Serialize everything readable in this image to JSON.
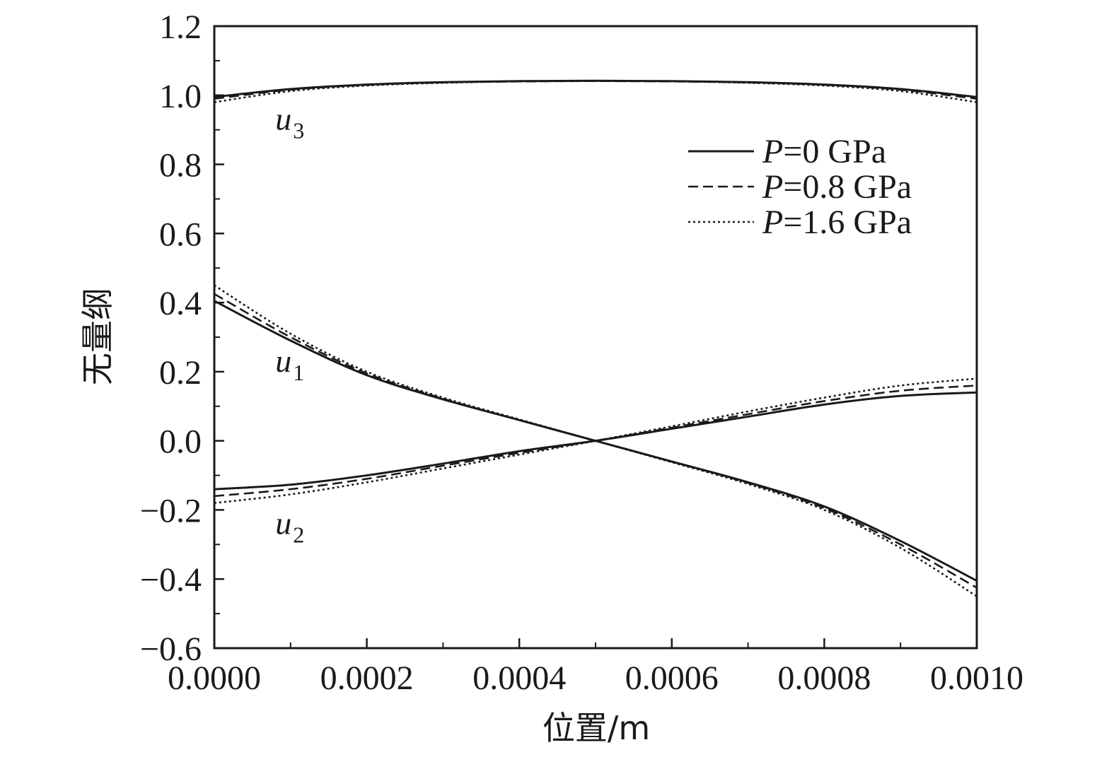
{
  "chart_data": {
    "type": "line",
    "xlabel": "位置/m",
    "ylabel": "无量纲",
    "xlim": [
      0,
      0.001
    ],
    "ylim": [
      -0.6,
      1.2
    ],
    "x_ticks": [
      "0.0000",
      "0.0002",
      "0.0004",
      "0.0006",
      "0.0008",
      "0.0010"
    ],
    "y_ticks": [
      "−0.6",
      "−0.4",
      "−0.2",
      "0.0",
      "0.2",
      "0.4",
      "0.6",
      "0.8",
      "1.0",
      "1.2"
    ],
    "grid": false,
    "legend_position": "top-right",
    "legend": [
      {
        "label_italic": "P",
        "label_rest": "=0 GPa",
        "style": "solid"
      },
      {
        "label_italic": "P",
        "label_rest": "=0.8 GPa",
        "style": "dashed"
      },
      {
        "label_italic": "P",
        "label_rest": "=1.6 GPa",
        "style": "dotted"
      }
    ],
    "curve_labels": [
      {
        "base": "u",
        "sub": "3",
        "x": 8e-05,
        "y": 0.9
      },
      {
        "base": "u",
        "sub": "1",
        "x": 8e-05,
        "y": 0.2
      },
      {
        "base": "u",
        "sub": "2",
        "x": 8e-05,
        "y": -0.27
      }
    ],
    "x": [
      0,
      0.0001,
      0.0002,
      0.0003,
      0.0004,
      0.0005,
      0.0006,
      0.0007,
      0.0008,
      0.0009,
      0.001
    ],
    "series": [
      {
        "group": "u1",
        "pressure": "0 GPa",
        "style": "solid",
        "values": [
          0.405,
          0.29,
          0.19,
          0.12,
          0.06,
          0,
          -0.06,
          -0.12,
          -0.19,
          -0.29,
          -0.405
        ]
      },
      {
        "group": "u1",
        "pressure": "0.8 GPa",
        "style": "dashed",
        "values": [
          0.425,
          0.3,
          0.195,
          0.122,
          0.06,
          0,
          -0.06,
          -0.122,
          -0.195,
          -0.3,
          -0.425
        ]
      },
      {
        "group": "u1",
        "pressure": "1.6 GPa",
        "style": "dotted",
        "values": [
          0.45,
          0.31,
          0.2,
          0.125,
          0.062,
          0,
          -0.062,
          -0.125,
          -0.2,
          -0.31,
          -0.45
        ]
      },
      {
        "group": "u2",
        "pressure": "0 GPa",
        "style": "solid",
        "values": [
          -0.14,
          -0.127,
          -0.1,
          -0.066,
          -0.03,
          0,
          0.035,
          0.07,
          0.105,
          0.13,
          0.14
        ]
      },
      {
        "group": "u2",
        "pressure": "0.8 GPa",
        "style": "dashed",
        "values": [
          -0.16,
          -0.14,
          -0.11,
          -0.072,
          -0.035,
          0,
          0.038,
          0.077,
          0.115,
          0.145,
          0.16
        ]
      },
      {
        "group": "u2",
        "pressure": "1.6 GPa",
        "style": "dotted",
        "values": [
          -0.18,
          -0.155,
          -0.12,
          -0.08,
          -0.04,
          0,
          0.042,
          0.085,
          0.125,
          0.16,
          0.18
        ]
      },
      {
        "group": "u3",
        "pressure": "0 GPa",
        "style": "solid",
        "values": [
          0.995,
          1.018,
          1.031,
          1.038,
          1.041,
          1.042,
          1.041,
          1.038,
          1.031,
          1.018,
          0.995
        ]
      },
      {
        "group": "u3",
        "pressure": "0.8 GPa",
        "style": "dashed",
        "values": [
          0.99,
          1.016,
          1.03,
          1.037,
          1.04,
          1.041,
          1.04,
          1.037,
          1.03,
          1.016,
          0.99
        ]
      },
      {
        "group": "u3",
        "pressure": "1.6 GPa",
        "style": "dotted",
        "values": [
          0.98,
          1.012,
          1.028,
          1.036,
          1.04,
          1.041,
          1.04,
          1.036,
          1.028,
          1.012,
          0.98
        ]
      }
    ]
  }
}
